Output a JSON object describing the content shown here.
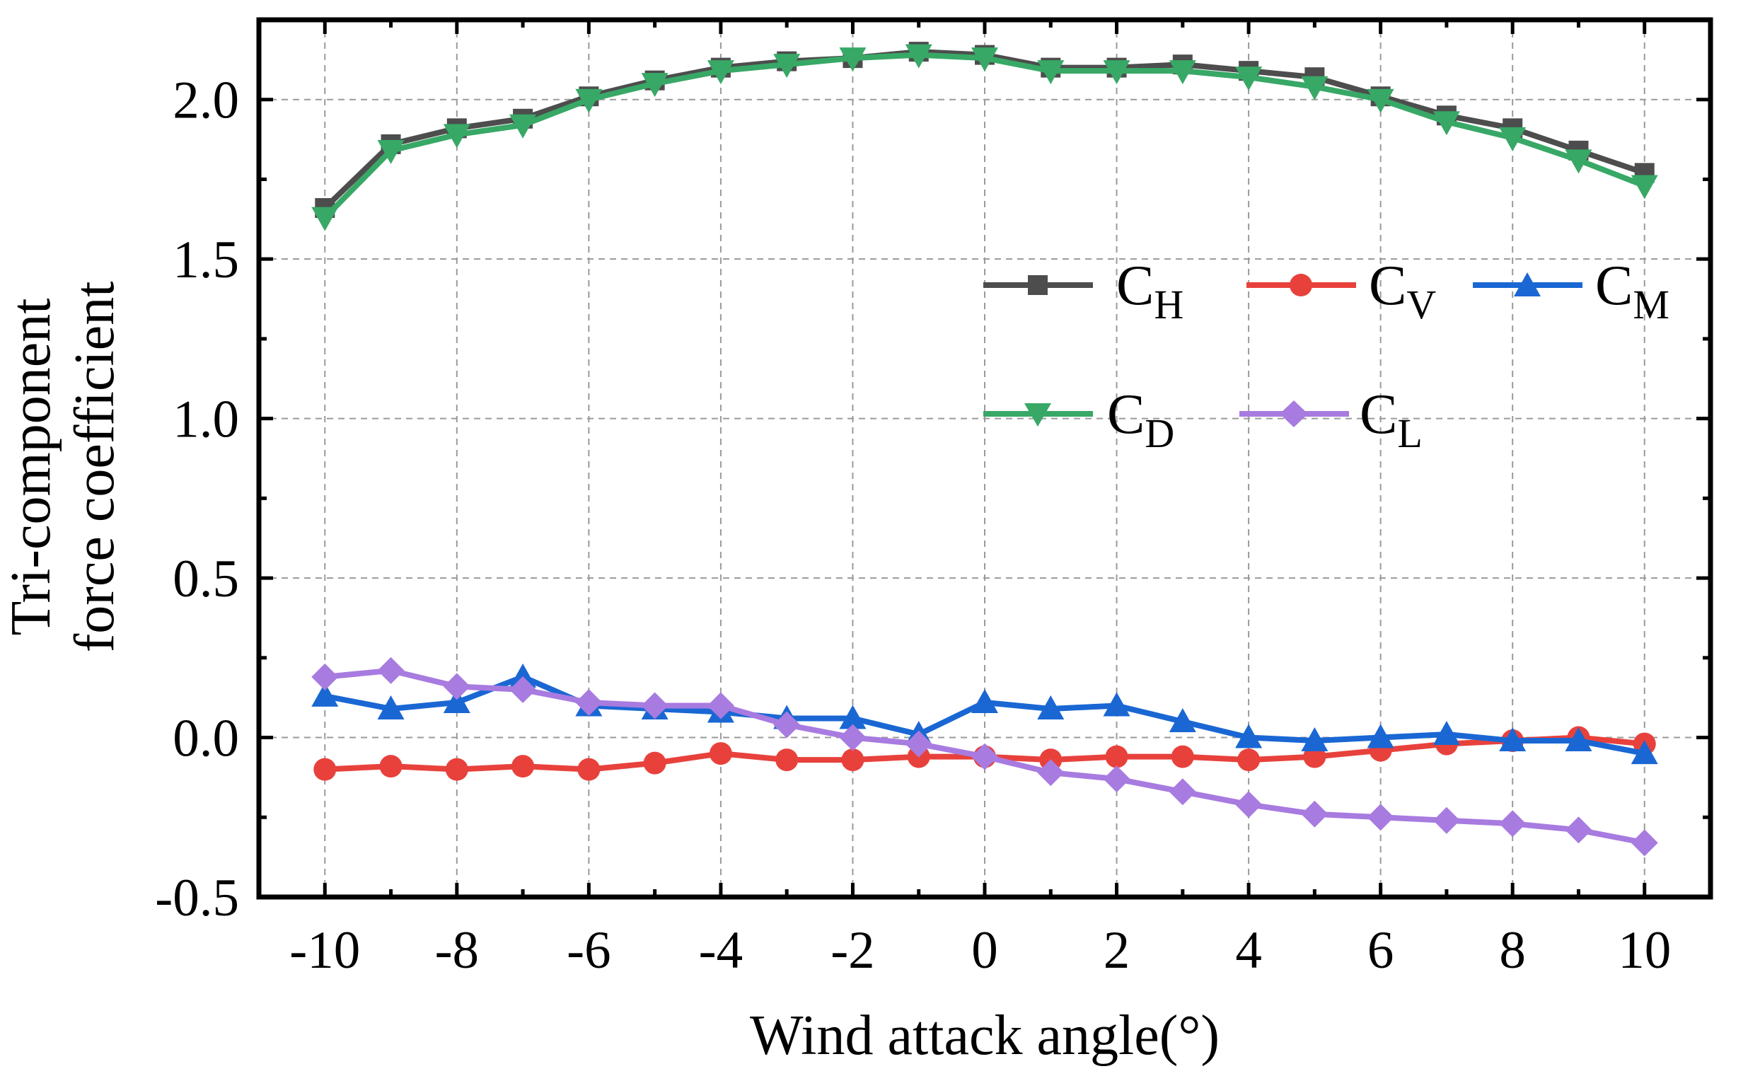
{
  "chart_data": {
    "type": "line",
    "xlabel": "Wind attack angle(°)",
    "ylabel": [
      "Tri-component",
      "force coefficient"
    ],
    "xlim": [
      -11,
      11
    ],
    "ylim": [
      -0.5,
      2.25
    ],
    "xticks": [
      -10,
      -8,
      -6,
      -4,
      -2,
      0,
      2,
      4,
      6,
      8,
      10
    ],
    "xtick_labels": [
      "-10",
      "-8",
      "-6",
      "-4",
      "-2",
      "0",
      "2",
      "4",
      "6",
      "8",
      "10"
    ],
    "yticks": [
      -0.5,
      0.0,
      0.5,
      1.0,
      1.5,
      2.0
    ],
    "ytick_labels": [
      "-0.5",
      "0.0",
      "0.5",
      "1.0",
      "1.5",
      "2.0"
    ],
    "grid": true,
    "legend_position": "center-right",
    "x": [
      -10,
      -9,
      -8,
      -7,
      -6,
      -5,
      -4,
      -3,
      -2,
      -1,
      0,
      1,
      2,
      3,
      4,
      5,
      6,
      7,
      8,
      9,
      10
    ],
    "series": [
      {
        "name": "CH",
        "name_main": "C",
        "name_sub": "H",
        "color": "#4d4d4d",
        "marker": "square",
        "values": [
          1.66,
          1.86,
          1.91,
          1.94,
          2.01,
          2.06,
          2.1,
          2.12,
          2.13,
          2.15,
          2.14,
          2.1,
          2.1,
          2.11,
          2.09,
          2.07,
          2.01,
          1.95,
          1.91,
          1.84,
          1.77
        ]
      },
      {
        "name": "CV",
        "name_main": "C",
        "name_sub": "V",
        "color": "#e8413c",
        "marker": "circle",
        "values": [
          -0.1,
          -0.09,
          -0.1,
          -0.09,
          -0.1,
          -0.08,
          -0.05,
          -0.07,
          -0.07,
          -0.06,
          -0.06,
          -0.07,
          -0.06,
          -0.06,
          -0.07,
          -0.06,
          -0.04,
          -0.02,
          -0.01,
          0.0,
          -0.02
        ]
      },
      {
        "name": "CM",
        "name_main": "C",
        "name_sub": "M",
        "color": "#1a67d4",
        "marker": "triangle-up",
        "values": [
          0.13,
          0.09,
          0.11,
          0.19,
          0.1,
          0.09,
          0.08,
          0.06,
          0.06,
          0.01,
          0.11,
          0.09,
          0.1,
          0.05,
          0.0,
          -0.01,
          0.0,
          0.01,
          -0.01,
          -0.01,
          -0.05
        ]
      },
      {
        "name": "CD",
        "name_main": "C",
        "name_sub": "D",
        "color": "#38a866",
        "marker": "triangle-down",
        "values": [
          1.63,
          1.84,
          1.89,
          1.92,
          2.0,
          2.05,
          2.09,
          2.11,
          2.13,
          2.14,
          2.13,
          2.09,
          2.09,
          2.09,
          2.07,
          2.04,
          2.0,
          1.93,
          1.88,
          1.81,
          1.73
        ]
      },
      {
        "name": "CL",
        "name_main": "C",
        "name_sub": "L",
        "color": "#a87be0",
        "marker": "diamond",
        "values": [
          0.19,
          0.21,
          0.16,
          0.15,
          0.11,
          0.1,
          0.1,
          0.04,
          0.0,
          -0.02,
          -0.06,
          -0.11,
          -0.13,
          -0.17,
          -0.21,
          -0.24,
          -0.25,
          -0.26,
          -0.27,
          -0.29,
          -0.33
        ]
      }
    ]
  }
}
